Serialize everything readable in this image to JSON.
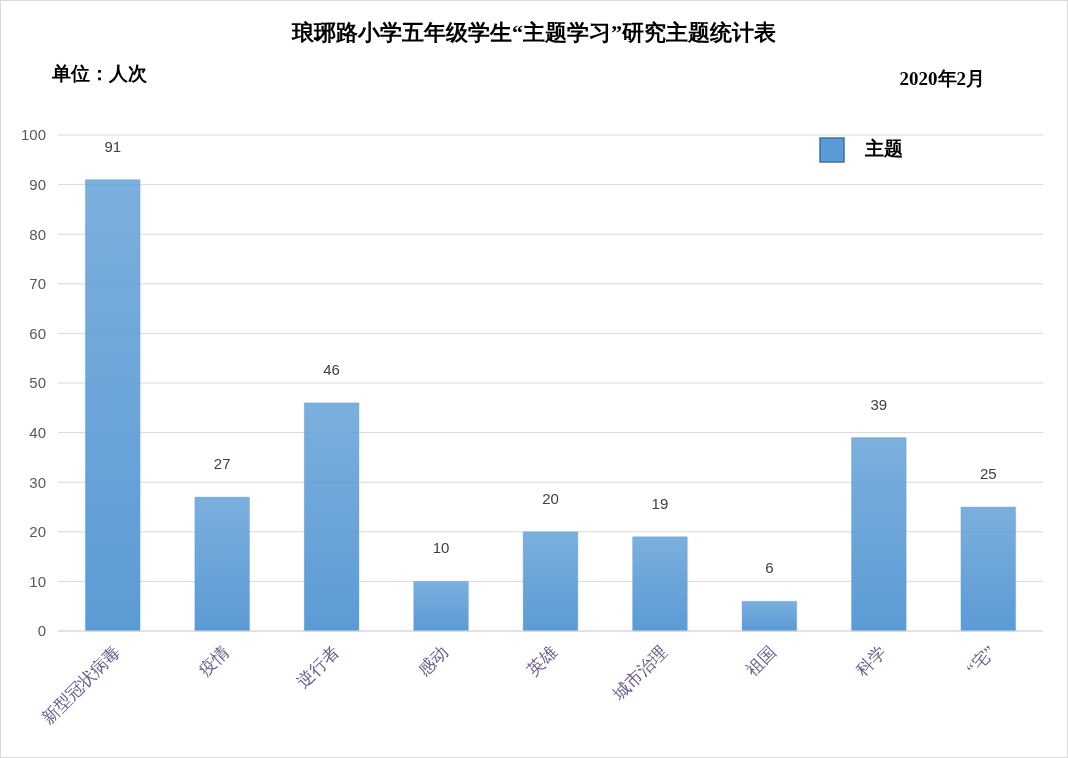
{
  "chart_data": {
    "type": "bar",
    "title": "琅琊路小学五年级学生“主题学习”研究主题统计表",
    "annotations": [
      "单位：人次",
      "2020年2月"
    ],
    "categories": [
      "新型冠状病毒",
      "疫情",
      "逆行者",
      "感动",
      "英雄",
      "城市治理",
      "祖国",
      "科学",
      "“宅”"
    ],
    "series": [
      {
        "name": "主题",
        "color": "#5b9bd5",
        "values": [
          91,
          27,
          46,
          10,
          20,
          19,
          6,
          39,
          25
        ]
      }
    ],
    "ylim": [
      0,
      100
    ],
    "yticks": [
      0,
      10,
      20,
      30,
      40,
      50,
      60,
      70,
      80,
      90,
      100
    ],
    "grid": "y",
    "legend": "top right",
    "data_labels": true
  }
}
